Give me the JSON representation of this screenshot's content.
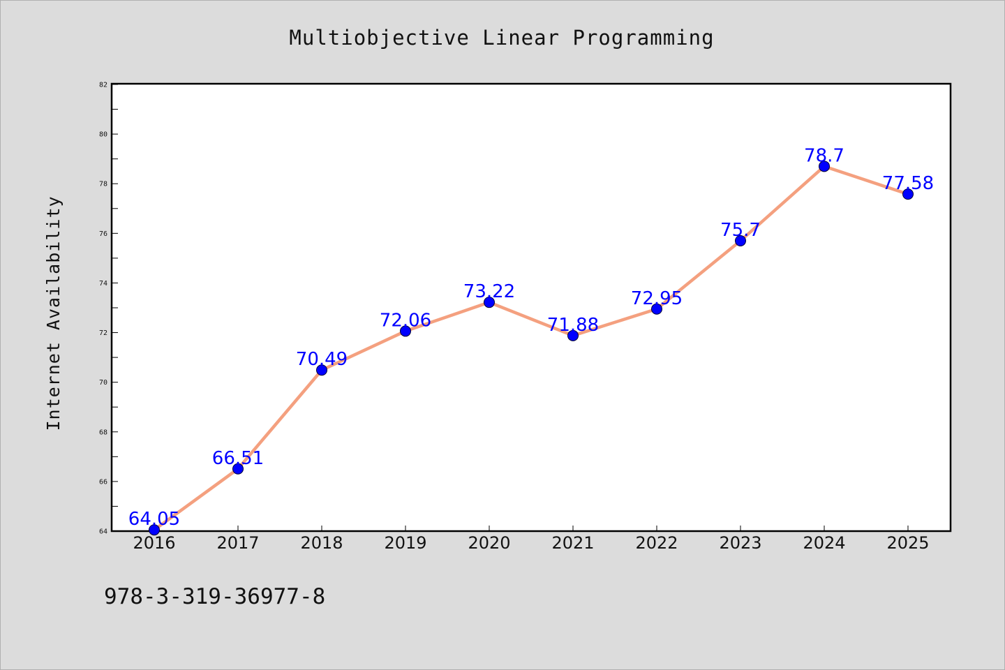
{
  "chart_data": {
    "type": "line",
    "title": "Multiobjective Linear Programming",
    "xlabel": "",
    "ylabel": "Internet Availability",
    "categories": [
      "2016",
      "2017",
      "2018",
      "2019",
      "2020",
      "2021",
      "2022",
      "2023",
      "2024",
      "2025"
    ],
    "series": [
      {
        "values": [
          64.05,
          66.51,
          70.49,
          72.06,
          73.22,
          71.88,
          72.95,
          75.7,
          78.7,
          77.58
        ]
      }
    ],
    "data_labels": [
      "64.05",
      "66.51",
      "70.49",
      "72.06",
      "73.22",
      "71.88",
      "72.95",
      "75.7",
      "78.7",
      "77.58"
    ],
    "ylim": [
      64,
      82
    ],
    "yticks": [
      "64",
      "66",
      "68",
      "70",
      "72",
      "74",
      "76",
      "78",
      "80",
      "82"
    ],
    "grid": false,
    "legend": "none"
  },
  "annotation": "978-3-319-36977-8",
  "colors": {
    "background": "#dcdcdc",
    "plot_area": "#ffffff",
    "line": "#f4a07f",
    "marker": "#0000ff",
    "data_label": "#0000ff"
  }
}
